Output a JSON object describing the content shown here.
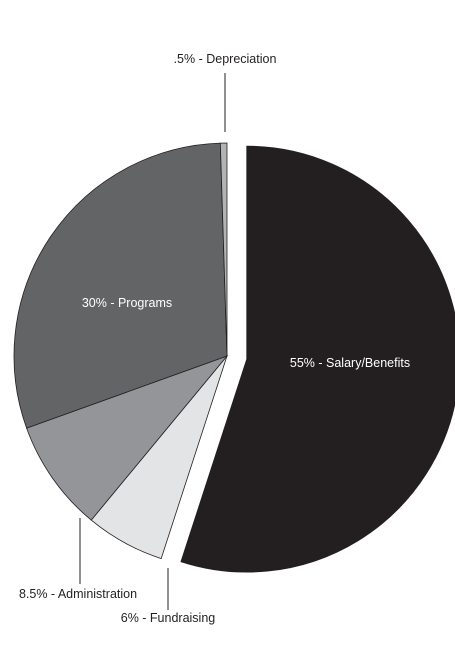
{
  "chart_data": {
    "type": "pie",
    "slices": [
      {
        "label": "55% - Salary/Benefits",
        "value": 55,
        "color": "#231f20",
        "label_color": "#ffffff"
      },
      {
        "label": "6% - Fundraising",
        "value": 6,
        "color": "#e3e4e5",
        "label_color": "#231f20"
      },
      {
        "label": "8.5% - Administration",
        "value": 8.5,
        "color": "#939598",
        "label_color": "#231f20"
      },
      {
        "label": "30% - Programs",
        "value": 30,
        "color": "#636466",
        "label_color": "#ffffff"
      },
      {
        "label": ".5% - Depreciation",
        "value": 0.5,
        "color": "#b2b3b5",
        "label_color": "#231f20"
      }
    ],
    "title": "",
    "legend": "none"
  }
}
